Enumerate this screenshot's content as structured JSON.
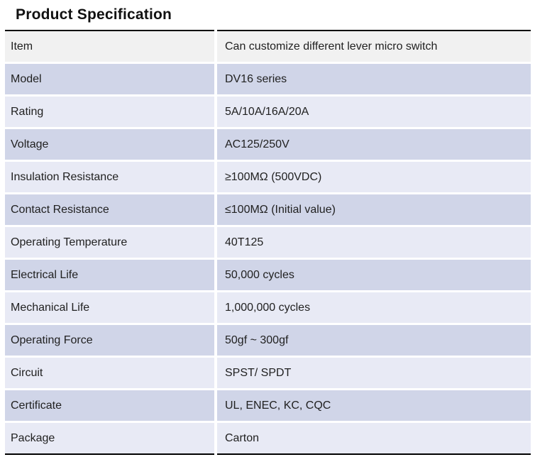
{
  "title": "Product Specification",
  "table": {
    "rows": [
      {
        "label": "Item",
        "value": "Can customize different lever micro switch"
      },
      {
        "label": "Model",
        "value": "DV16 series"
      },
      {
        "label": "Rating",
        "value": "5A/10A/16A/20A"
      },
      {
        "label": "Voltage",
        "value": "AC125/250V"
      },
      {
        "label": "Insulation Resistance",
        "value": "≥100MΩ (500VDC)"
      },
      {
        "label": "Contact Resistance",
        "value": "≤100MΩ (Initial value)"
      },
      {
        "label": "Operating Temperature",
        "value": "40T125"
      },
      {
        "label": "Electrical Life",
        "value": "50,000 cycles"
      },
      {
        "label": "Mechanical Life",
        "value": "1,000,000 cycles"
      },
      {
        "label": "Operating Force",
        "value": "50gf  ~  300gf"
      },
      {
        "label": "Circuit",
        "value": "SPST/ SPDT"
      },
      {
        "label": "Certificate",
        "value": "UL, ENEC, KC, CQC"
      },
      {
        "label": "Package",
        "value": "Carton"
      }
    ],
    "colors": {
      "header_row_bg": "#f1f1f1",
      "light_row_bg": "#e8eaf5",
      "dark_row_bg": "#d0d5e8",
      "rule": "#000000"
    }
  }
}
